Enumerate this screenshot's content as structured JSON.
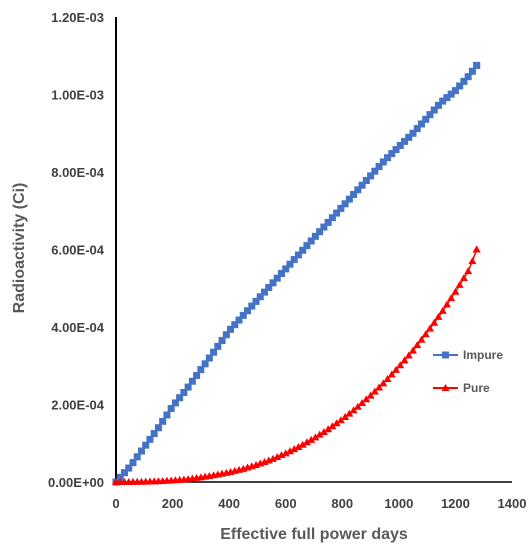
{
  "chart_data": {
    "type": "scatter",
    "xlabel": "Effective full power days",
    "ylabel": "Radioactivity (Ci)",
    "xlim": [
      0,
      1400
    ],
    "ylim": [
      0,
      0.0012
    ],
    "x_ticks": [
      "0",
      "200",
      "400",
      "600",
      "800",
      "1000",
      "1200",
      "1400"
    ],
    "y_ticks": [
      "0.00E+00",
      "2.00E-04",
      "4.00E-04",
      "6.00E-04",
      "8.00E-04",
      "1.00E-03",
      "1.20E-03"
    ],
    "legend_position": "right",
    "grid": false,
    "series": [
      {
        "name": "Impure",
        "color": "#4472C4",
        "marker": "square",
        "x": [
          0,
          50,
          100,
          150,
          200,
          250,
          300,
          350,
          400,
          450,
          500,
          550,
          600,
          650,
          700,
          750,
          800,
          850,
          900,
          950,
          1000,
          1050,
          1100,
          1150,
          1200,
          1250,
          1275
        ],
        "y": [
          0,
          4e-05,
          9e-05,
          0.00014,
          0.000195,
          0.00024,
          0.00029,
          0.00034,
          0.00039,
          0.00043,
          0.00047,
          0.00051,
          0.00055,
          0.00059,
          0.00063,
          0.00067,
          0.00071,
          0.00075,
          0.00079,
          0.00083,
          0.000865,
          0.0009,
          0.00094,
          0.00098,
          0.00101,
          0.00105,
          0.001075
        ]
      },
      {
        "name": "Pure",
        "color": "#FF0000",
        "marker": "triangle",
        "x": [
          0,
          50,
          100,
          150,
          200,
          250,
          300,
          350,
          400,
          450,
          500,
          550,
          600,
          650,
          700,
          750,
          800,
          850,
          900,
          950,
          1000,
          1050,
          1100,
          1150,
          1200,
          1250,
          1275
        ],
        "y": [
          0,
          0,
          1e-06,
          2e-06,
          4e-06,
          7e-06,
          1.2e-05,
          1.8e-05,
          2.5e-05,
          3.4e-05,
          4.5e-05,
          5.8e-05,
          7.4e-05,
          9.2e-05,
          0.000113,
          0.000136,
          0.000162,
          0.000191,
          0.000223,
          0.000258,
          0.000297,
          0.000339,
          0.000386,
          0.000436,
          0.000491,
          0.00055,
          0.0006
        ]
      }
    ]
  }
}
